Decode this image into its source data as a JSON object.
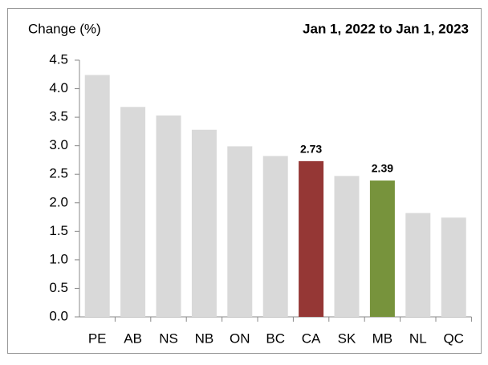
{
  "chart_data": {
    "type": "bar",
    "title": "Jan 1, 2022 to Jan 1, 2023",
    "y_label": "Change (%)",
    "categories": [
      "PE",
      "AB",
      "NS",
      "NB",
      "ON",
      "BC",
      "CA",
      "SK",
      "MB",
      "NL",
      "QC"
    ],
    "values": [
      4.24,
      3.68,
      3.53,
      3.28,
      2.99,
      2.82,
      2.73,
      2.47,
      2.39,
      1.82,
      1.74
    ],
    "value_labels": [
      null,
      null,
      null,
      null,
      null,
      null,
      "2.73",
      null,
      "2.39",
      null,
      null
    ],
    "colors": [
      "#d9d9d9",
      "#d9d9d9",
      "#d9d9d9",
      "#d9d9d9",
      "#d9d9d9",
      "#d9d9d9",
      "#953735",
      "#d9d9d9",
      "#77933c",
      "#d9d9d9",
      "#d9d9d9"
    ],
    "ylim": [
      0,
      4.5
    ],
    "yticks": [
      {
        "value": 0,
        "label": "0.0"
      },
      0.5,
      {
        "value": 1,
        "label": "1.0"
      },
      1.5,
      {
        "value": 2,
        "label": "2.0"
      },
      2.5,
      {
        "value": 3,
        "label": "3.0"
      },
      3.5,
      {
        "value": 4,
        "label": "4.0"
      },
      4.5
    ],
    "grid": false
  }
}
